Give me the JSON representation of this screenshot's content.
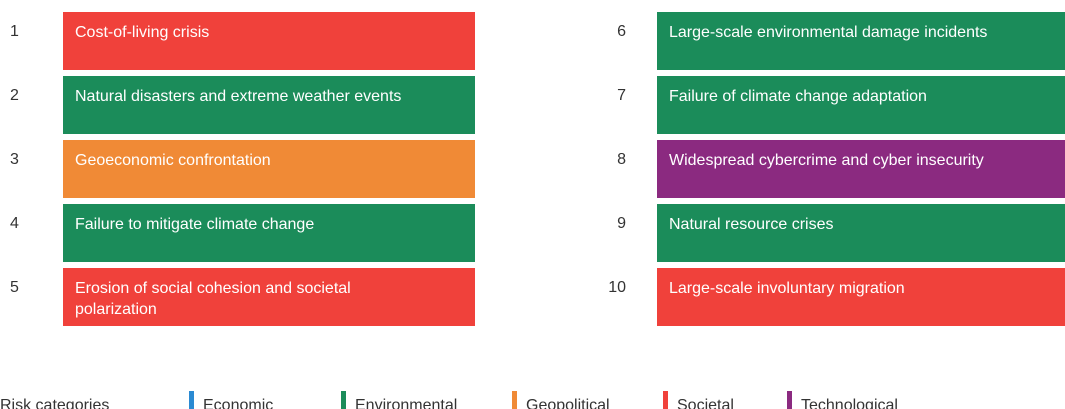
{
  "items": [
    {
      "rank": "1",
      "label": "Cost-of-living crisis",
      "category": "Societal"
    },
    {
      "rank": "2",
      "label": "Natural disasters and extreme weather events",
      "category": "Environmental"
    },
    {
      "rank": "3",
      "label": "Geoeconomic confrontation",
      "category": "Geopolitical"
    },
    {
      "rank": "4",
      "label": "Failure to mitigate climate change",
      "category": "Environmental"
    },
    {
      "rank": "5",
      "label": "Erosion of social cohesion and societal polarization",
      "category": "Societal"
    },
    {
      "rank": "6",
      "label": "Large-scale environmental damage incidents",
      "category": "Environmental"
    },
    {
      "rank": "7",
      "label": "Failure of climate change adaptation",
      "category": "Environmental"
    },
    {
      "rank": "8",
      "label": "Widespread cybercrime and cyber insecurity",
      "category": "Technological"
    },
    {
      "rank": "9",
      "label": "Natural resource crises",
      "category": "Environmental"
    },
    {
      "rank": "10",
      "label": "Large-scale involuntary migration",
      "category": "Societal"
    }
  ],
  "legend": {
    "title": "Risk categories",
    "categories": [
      {
        "name": "Economic",
        "color": "#2b8ad2"
      },
      {
        "name": "Environmental",
        "color": "#1b8c5a"
      },
      {
        "name": "Geopolitical",
        "color": "#f08a36"
      },
      {
        "name": "Societal",
        "color": "#f0413b"
      },
      {
        "name": "Technological",
        "color": "#8b2a80"
      }
    ]
  }
}
